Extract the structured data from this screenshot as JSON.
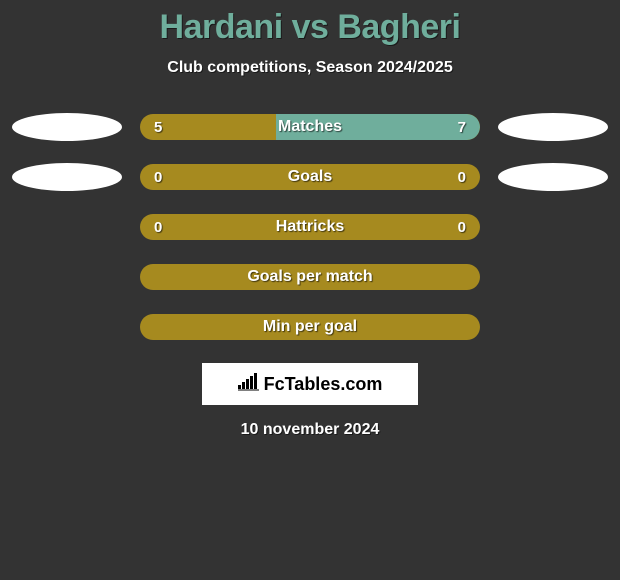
{
  "title": "Hardani vs Bagheri",
  "subtitle": "Club competitions, Season 2024/2025",
  "date": "10 november 2024",
  "logo_text": "FcTables.com",
  "colors": {
    "background": "#333333",
    "title": "#6fae9c",
    "left_fill": "#a68a1f",
    "right_fill": "#6fae9c",
    "ellipse": "#ffffff",
    "text": "#ffffff"
  },
  "rows": [
    {
      "label": "Matches",
      "left_value": "5",
      "right_value": "7",
      "left_pct": 40,
      "right_pct": 60,
      "show_left_ellipse": true,
      "show_right_ellipse": true,
      "show_values": true
    },
    {
      "label": "Goals",
      "left_value": "0",
      "right_value": "0",
      "left_pct": 100,
      "right_pct": 0,
      "show_left_ellipse": true,
      "show_right_ellipse": true,
      "show_values": true
    },
    {
      "label": "Hattricks",
      "left_value": "0",
      "right_value": "0",
      "left_pct": 100,
      "right_pct": 0,
      "show_left_ellipse": false,
      "show_right_ellipse": false,
      "show_values": true
    },
    {
      "label": "Goals per match",
      "left_value": "",
      "right_value": "",
      "left_pct": 100,
      "right_pct": 0,
      "show_left_ellipse": false,
      "show_right_ellipse": false,
      "show_values": false
    },
    {
      "label": "Min per goal",
      "left_value": "",
      "right_value": "",
      "left_pct": 100,
      "right_pct": 0,
      "show_left_ellipse": false,
      "show_right_ellipse": false,
      "show_values": false
    }
  ]
}
